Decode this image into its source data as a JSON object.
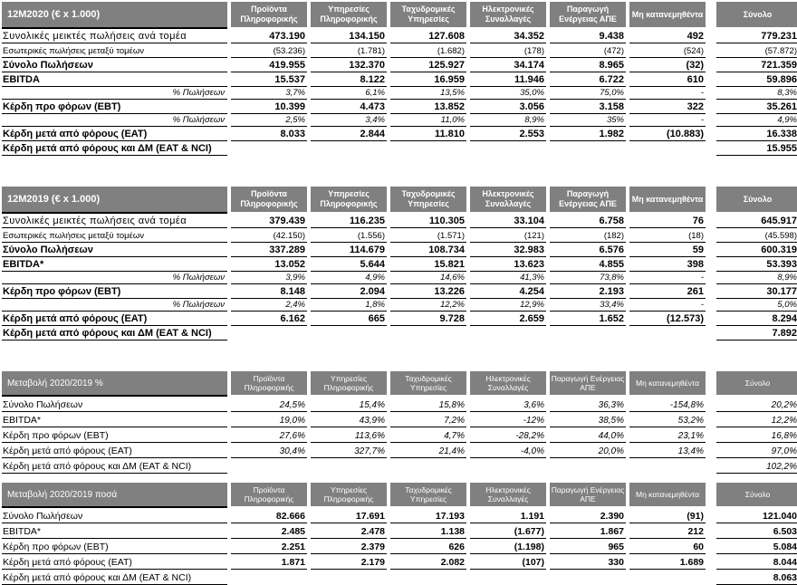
{
  "colors": {
    "header_bg": "#808080",
    "header_text": "#ffffff",
    "text": "#000000",
    "border": "#000000"
  },
  "columns": [
    "Προϊόντα Πληροφορικής",
    "Υπηρεσίες Πληροφορικής",
    "Ταχυδρομικές Υπηρεσίες",
    "Ηλεκτρονικές Συναλλαγές",
    "Παραγωγή Ενέργειας ΑΠΕ",
    "Μη κατανεμηθέντα",
    "Σύνολο"
  ],
  "tables": [
    {
      "title": "12M2020  (€ x 1.000)",
      "style": "t12",
      "rows": [
        {
          "kind": "gross",
          "label": "Συνολικές μεικτές πωλήσεις ανά τομέα",
          "values": [
            "473.190",
            "134.150",
            "127.608",
            "34.352",
            "9.438",
            "492",
            "779.231"
          ]
        },
        {
          "kind": "inner",
          "label": "Εσωτερικές πωλήσεις μεταξύ τομέων",
          "values": [
            "(53.236)",
            "(1.781)",
            "(1.682)",
            "(178)",
            "(472)",
            "(524)",
            "(57.872)"
          ]
        },
        {
          "kind": "bold",
          "label": "Σύνολο Πωλήσεων",
          "values": [
            "419.955",
            "132.370",
            "125.927",
            "34.174",
            "8.965",
            "(32)",
            "721.359"
          ]
        },
        {
          "kind": "bold",
          "label": "EBITDA",
          "values": [
            "15.537",
            "8.122",
            "16.959",
            "11.946",
            "6.722",
            "610",
            "59.896"
          ]
        },
        {
          "kind": "percent",
          "label": "% Πωλήσεων",
          "values": [
            "3,7%",
            "6,1%",
            "13,5%",
            "35,0%",
            "75,0%",
            "-",
            "8,3%"
          ]
        },
        {
          "kind": "bold",
          "label": "Κέρδη προ φόρων (EBT)",
          "values": [
            "10.399",
            "4.473",
            "13.852",
            "3.056",
            "3.158",
            "322",
            "35.261"
          ]
        },
        {
          "kind": "percent",
          "label": "% Πωλήσεων",
          "values": [
            "2,5%",
            "3,4%",
            "11,0%",
            "8,9%",
            "35%",
            "-",
            "4,9%"
          ]
        },
        {
          "kind": "bold",
          "label": "Κέρδη μετά από φόρους (EAT)",
          "values": [
            "8.033",
            "2.844",
            "11.810",
            "2.553",
            "1.982",
            "(10.883)",
            "16.338"
          ]
        },
        {
          "kind": "total-bold",
          "label": "Κέρδη μετά από φόρους και ΔΜ (EAT & NCI)",
          "values": [
            "",
            "",
            "",
            "",
            "",
            "",
            "15.955"
          ]
        }
      ]
    },
    {
      "title": "12M2019  (€ x 1.000)",
      "style": "t12",
      "rows": [
        {
          "kind": "gross",
          "label": "Συνολικές μεικτές πωλήσεις ανά τομέα",
          "values": [
            "379.439",
            "116.235",
            "110.305",
            "33.104",
            "6.758",
            "76",
            "645.917"
          ]
        },
        {
          "kind": "inner",
          "label": "Εσωτερικές πωλήσεις μεταξύ τομέων",
          "values": [
            "(42.150)",
            "(1.556)",
            "(1.571)",
            "(121)",
            "(182)",
            "(18)",
            "(45.598)"
          ]
        },
        {
          "kind": "bold",
          "label": "Σύνολο Πωλήσεων",
          "values": [
            "337.289",
            "114.679",
            "108.734",
            "32.983",
            "6.576",
            "59",
            "600.319"
          ]
        },
        {
          "kind": "bold",
          "label": "EBITDA*",
          "values": [
            "13.052",
            "5.644",
            "15.821",
            "13.623",
            "4.855",
            "398",
            "53.393"
          ]
        },
        {
          "kind": "percent",
          "label": "% Πωλήσεων",
          "values": [
            "3,9%",
            "4,9%",
            "14,6%",
            "41,3%",
            "73,8%",
            "-",
            "8,9%"
          ]
        },
        {
          "kind": "bold",
          "label": "Κέρδη προ φόρων (EBT)",
          "values": [
            "8.148",
            "2.094",
            "13.226",
            "4.254",
            "2.193",
            "261",
            "30.177"
          ]
        },
        {
          "kind": "percent",
          "label": "% Πωλήσεων",
          "values": [
            "2,4%",
            "1,8%",
            "12,2%",
            "12,9%",
            "33,4%",
            "-",
            "5,0%"
          ]
        },
        {
          "kind": "bold",
          "label": "Κέρδη μετά από φόρους (EAT)",
          "values": [
            "6.162",
            "665",
            "9.728",
            "2.659",
            "1.652",
            "(12.573)",
            "8.294"
          ]
        },
        {
          "kind": "total-bold",
          "label": "Κέρδη μετά από φόρους και ΔΜ (EAT & NCI)",
          "values": [
            "",
            "",
            "",
            "",
            "",
            "",
            "7.892"
          ]
        }
      ]
    },
    {
      "title": "Μεταβολή 2020/2019 %",
      "style": "t34",
      "rows": [
        {
          "kind": "change-italic",
          "label": "Σύνολο Πωλήσεων",
          "values": [
            "24,5%",
            "15,4%",
            "15,8%",
            "3,6%",
            "36,3%",
            "-154,8%",
            "20,2%"
          ]
        },
        {
          "kind": "change-italic",
          "label": "EBITDA*",
          "values": [
            "19,0%",
            "43,9%",
            "7,2%",
            "-12%",
            "38,5%",
            "53,2%",
            "12,2%"
          ]
        },
        {
          "kind": "change-italic",
          "label": "Κέρδη προ φόρων (EBT)",
          "values": [
            "27,6%",
            "113,6%",
            "4,7%",
            "-28,2%",
            "44,0%",
            "23,1%",
            "16,8%"
          ]
        },
        {
          "kind": "change-italic",
          "label": "Κέρδη μετά από φόρους (EAT)",
          "values": [
            "30,4%",
            "327,7%",
            "21,4%",
            "-4,0%",
            "20,0%",
            "13,4%",
            "97,0%"
          ]
        },
        {
          "kind": "total-italic",
          "label": "Κέρδη μετά από φόρους και ΔΜ (EAT & NCI)",
          "values": [
            "",
            "",
            "",
            "",
            "",
            "",
            "102,2%"
          ]
        }
      ]
    },
    {
      "title": "Μεταβολή 2020/2019 ποσά",
      "style": "t34",
      "rows": [
        {
          "kind": "change-bold",
          "label": "Σύνολο Πωλήσεων",
          "values": [
            "82.666",
            "17.691",
            "17.193",
            "1.191",
            "2.390",
            "(91)",
            "121.040"
          ]
        },
        {
          "kind": "change-bold",
          "label": "EBITDA*",
          "values": [
            "2.485",
            "2.478",
            "1.138",
            "(1.677)",
            "1.867",
            "212",
            "6.503"
          ]
        },
        {
          "kind": "change-bold",
          "label": "Κέρδη προ φόρων (EBT)",
          "values": [
            "2.251",
            "2.379",
            "626",
            "(1.198)",
            "965",
            "60",
            "5.084"
          ]
        },
        {
          "kind": "change-bold",
          "label": "Κέρδη μετά από φόρους (EAT)",
          "values": [
            "1.871",
            "2.179",
            "2.082",
            "(107)",
            "330",
            "1.689",
            "8.044"
          ]
        },
        {
          "kind": "total-boldsm",
          "label": "Κέρδη μετά από φόρους και ΔΜ (EAT & NCI)",
          "values": [
            "",
            "",
            "",
            "",
            "",
            "",
            "8.063"
          ]
        }
      ]
    }
  ]
}
